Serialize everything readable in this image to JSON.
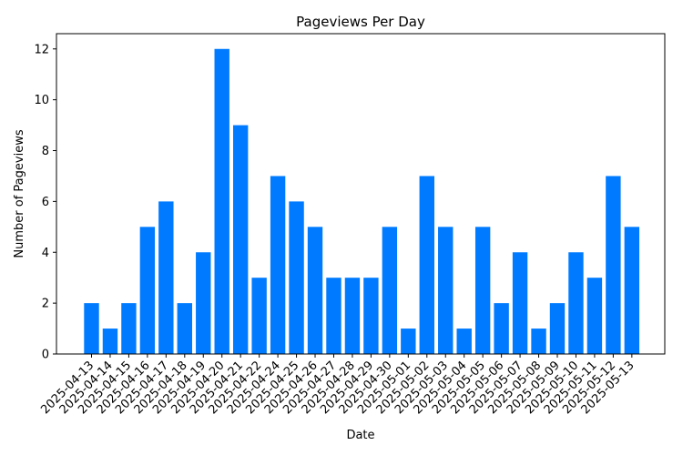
{
  "chart_data": {
    "type": "bar",
    "title": "Pageviews Per Day",
    "xlabel": "Date",
    "ylabel": "Number of Pageviews",
    "ylim": [
      0,
      12.6
    ],
    "yticks": [
      0,
      2,
      4,
      6,
      8,
      10,
      12
    ],
    "grid": false,
    "bar_color": "#007bff",
    "categories": [
      "2025-04-13",
      "2025-04-14",
      "2025-04-15",
      "2025-04-16",
      "2025-04-17",
      "2025-04-18",
      "2025-04-19",
      "2025-04-20",
      "2025-04-21",
      "2025-04-22",
      "2025-04-24",
      "2025-04-25",
      "2025-04-26",
      "2025-04-27",
      "2025-04-28",
      "2025-04-29",
      "2025-04-30",
      "2025-05-01",
      "2025-05-02",
      "2025-05-03",
      "2025-05-04",
      "2025-05-05",
      "2025-05-06",
      "2025-05-07",
      "2025-05-08",
      "2025-05-09",
      "2025-05-10",
      "2025-05-11",
      "2025-05-12",
      "2025-05-13"
    ],
    "values": [
      2,
      1,
      2,
      5,
      6,
      2,
      4,
      12,
      9,
      3,
      7,
      6,
      5,
      3,
      3,
      3,
      5,
      1,
      7,
      5,
      1,
      5,
      2,
      4,
      1,
      2,
      4,
      3,
      7,
      5
    ]
  }
}
